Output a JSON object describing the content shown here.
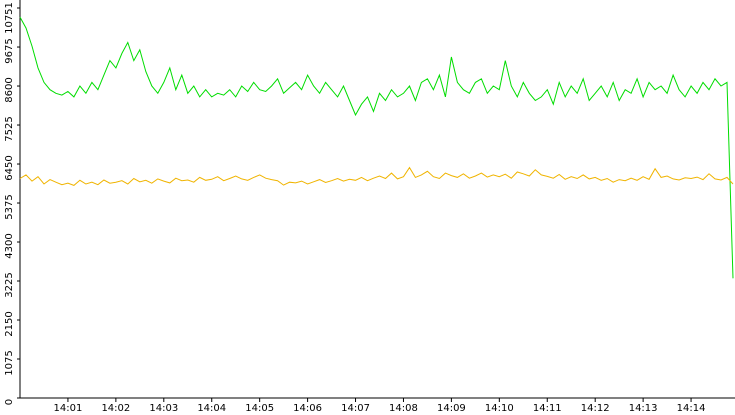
{
  "chart_data": {
    "type": "line",
    "categories": [
      null,
      null,
      null,
      null,
      null,
      null,
      null,
      null,
      "14:01",
      null,
      null,
      null,
      null,
      null,
      null,
      null,
      "14:02",
      null,
      null,
      null,
      null,
      null,
      null,
      null,
      "14:03",
      null,
      null,
      null,
      null,
      null,
      null,
      null,
      "14:04",
      null,
      null,
      null,
      null,
      null,
      null,
      null,
      "14:05",
      null,
      null,
      null,
      null,
      null,
      null,
      null,
      "14:06",
      null,
      null,
      null,
      null,
      null,
      null,
      null,
      "14:07",
      null,
      null,
      null,
      null,
      null,
      null,
      null,
      "14:08",
      null,
      null,
      null,
      null,
      null,
      null,
      null,
      "14:09",
      null,
      null,
      null,
      null,
      null,
      null,
      null,
      "14:10",
      null,
      null,
      null,
      null,
      null,
      null,
      null,
      "14:11",
      null,
      null,
      null,
      null,
      null,
      null,
      null,
      "14:12",
      null,
      null,
      null,
      null,
      null,
      null,
      null,
      "14:13",
      null,
      null,
      null,
      null,
      null,
      null,
      null,
      "14:14",
      null,
      null,
      null,
      null,
      null,
      null,
      null
    ],
    "series": [
      {
        "color": "#00dd00",
        "values": [
          10500,
          10200,
          9700,
          9100,
          8700,
          8500,
          8400,
          8350,
          8450,
          8300,
          8600,
          8400,
          8700,
          8500,
          8900,
          9300,
          9100,
          9500,
          9800,
          9300,
          9600,
          9000,
          8600,
          8400,
          8700,
          9100,
          8500,
          8900,
          8400,
          8600,
          8300,
          8500,
          8300,
          8400,
          8350,
          8500,
          8300,
          8600,
          8450,
          8700,
          8500,
          8450,
          8600,
          8800,
          8400,
          8550,
          8700,
          8500,
          8900,
          8600,
          8400,
          8700,
          8500,
          8300,
          8600,
          8200,
          7800,
          8100,
          8300,
          7900,
          8400,
          8200,
          8500,
          8300,
          8400,
          8600,
          8200,
          8700,
          8800,
          8500,
          8900,
          8300,
          9400,
          8700,
          8500,
          8400,
          8700,
          8800,
          8400,
          8600,
          8500,
          9300,
          8600,
          8300,
          8700,
          8400,
          8200,
          8300,
          8500,
          8100,
          8700,
          8300,
          8600,
          8400,
          8800,
          8200,
          8400,
          8600,
          8300,
          8700,
          8200,
          8500,
          8400,
          8800,
          8300,
          8700,
          8500,
          8600,
          8400,
          8900,
          8500,
          8300,
          8600,
          8400,
          8700,
          8500,
          8800,
          8600,
          8700,
          3300
        ]
      },
      {
        "color": "#f0b400",
        "values": [
          6050,
          6150,
          5980,
          6100,
          5900,
          6020,
          5950,
          5880,
          5920,
          5860,
          6000,
          5900,
          5950,
          5880,
          6010,
          5920,
          5950,
          5990,
          5900,
          6050,
          5960,
          6000,
          5920,
          6040,
          5980,
          5930,
          6060,
          5990,
          6010,
          5950,
          6080,
          6000,
          6030,
          6100,
          5990,
          6050,
          6120,
          6040,
          6000,
          6080,
          6150,
          6060,
          6020,
          5990,
          5870,
          5950,
          5930,
          5980,
          5900,
          5960,
          6020,
          5940,
          5990,
          6050,
          5980,
          6030,
          6000,
          6080,
          5990,
          6060,
          6120,
          6050,
          6200,
          6040,
          6100,
          6350,
          6080,
          6150,
          6250,
          6100,
          6050,
          6200,
          6130,
          6080,
          6180,
          6060,
          6120,
          6200,
          6090,
          6150,
          6100,
          6170,
          6060,
          6230,
          6180,
          6120,
          6290,
          6150,
          6110,
          6060,
          6160,
          6030,
          6100,
          6050,
          6150,
          6040,
          6080,
          6000,
          6050,
          5950,
          6020,
          5990,
          6060,
          6000,
          6100,
          6030,
          6320,
          6080,
          6120,
          6040,
          6010,
          6070,
          6050,
          6090,
          6020,
          6180,
          6040,
          6010,
          6080,
          5900
        ]
      }
    ],
    "ylim": [
      0,
      10751
    ],
    "yticks": [
      0,
      1075,
      2150,
      3225,
      4300,
      5375,
      6450,
      7525,
      8600,
      9675,
      10751
    ]
  }
}
